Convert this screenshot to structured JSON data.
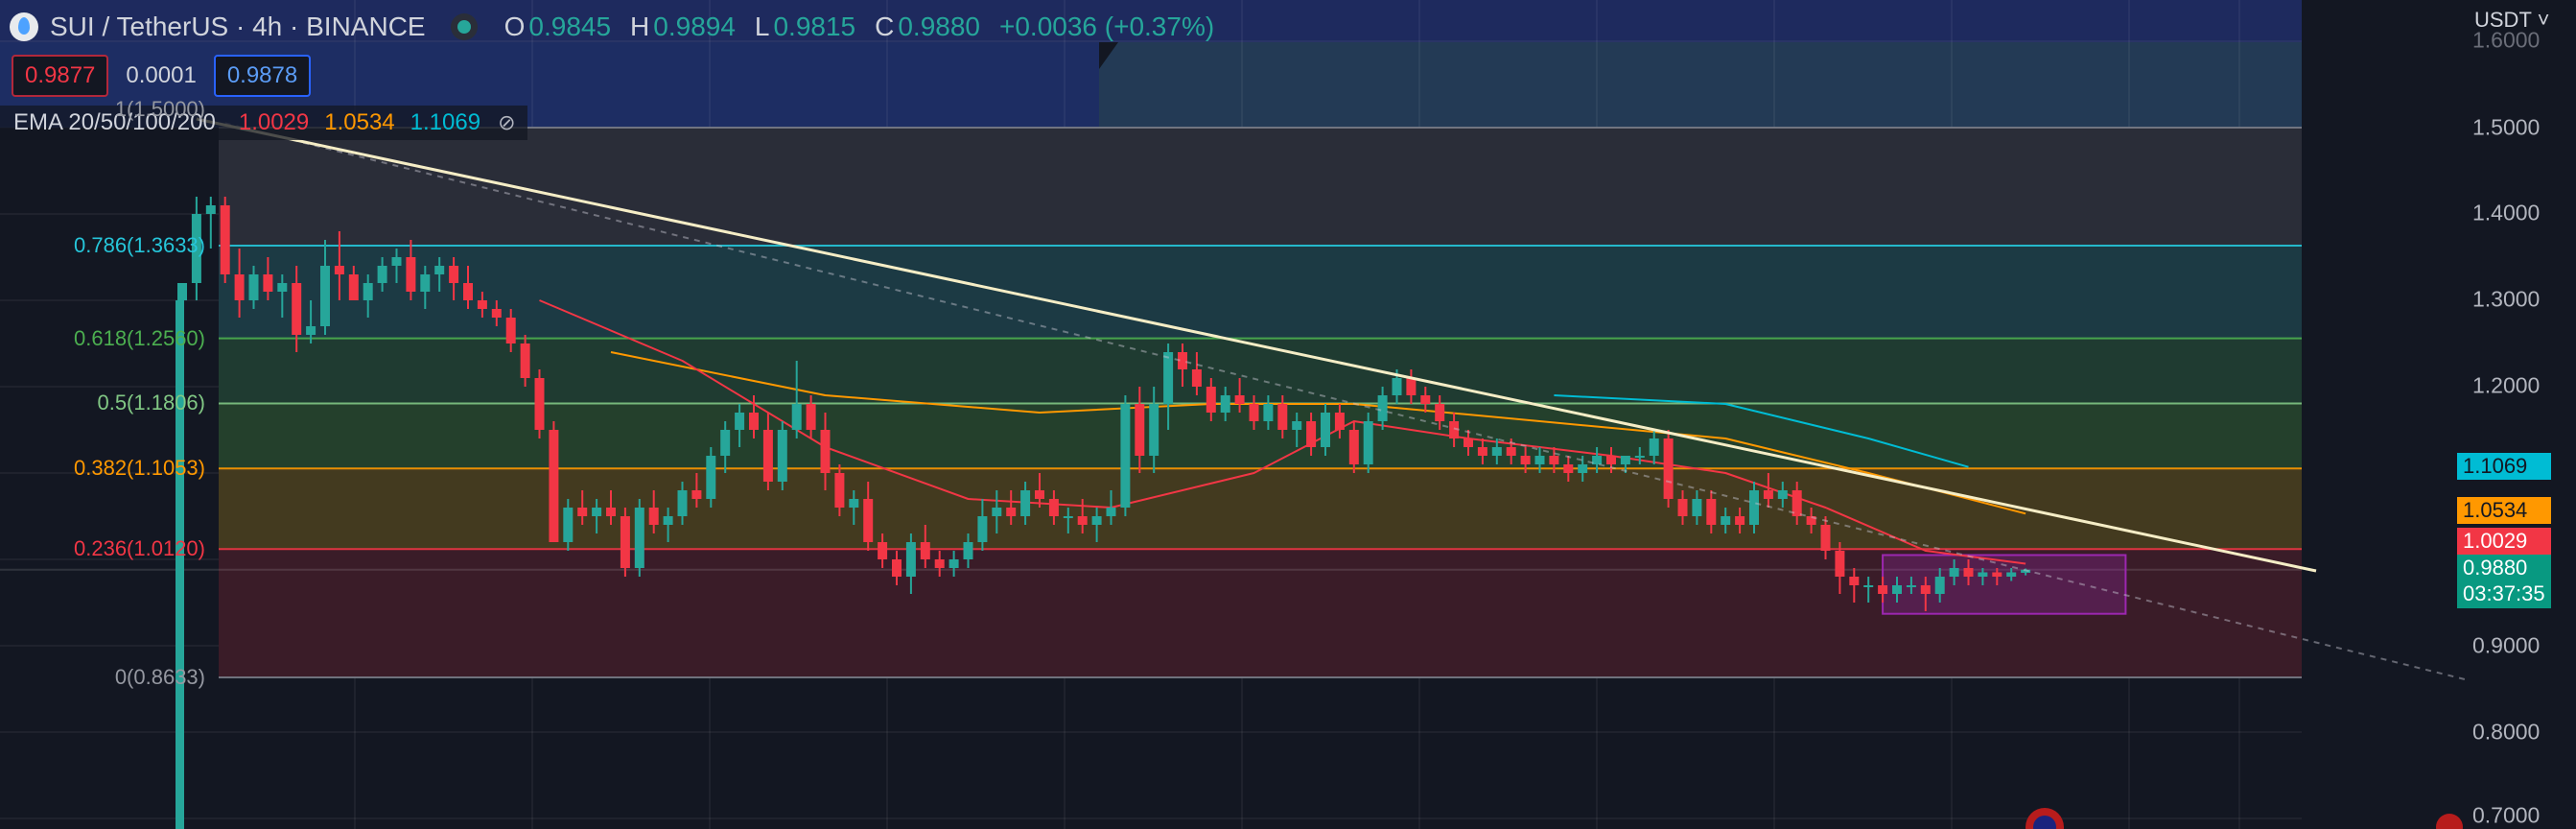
{
  "header": {
    "title": "SUI / TetherUS · 4h · BINANCE",
    "open_label": "O",
    "open": "0.9845",
    "high_label": "H",
    "high": "0.9894",
    "low_label": "L",
    "low": "0.9815",
    "close_label": "C",
    "close": "0.9880",
    "change": "+0.0036 (+0.37%)"
  },
  "quote": {
    "bid": "0.9877",
    "spread": "0.0001",
    "ask": "0.9878"
  },
  "ema": {
    "title": "EMA 20/50/100/200",
    "ema20": "1.0029",
    "ema50": "1.0534",
    "ema100": "1.1069",
    "visibility_icon": "eye-off-icon"
  },
  "fib_levels": [
    {
      "label": "1(1.5000)",
      "price": 1.5,
      "color": "#787b86",
      "fill": "#2a2d38"
    },
    {
      "label": "0.786(1.3633)",
      "price": 1.3633,
      "color": "#26c6da",
      "fill": "#1c3a44"
    },
    {
      "label": "0.618(1.2560)",
      "price": 1.256,
      "color": "#4caf50",
      "fill": "#1f3b31"
    },
    {
      "label": "0.5(1.1806)",
      "price": 1.1806,
      "color": "#81c784",
      "fill": "#24402c"
    },
    {
      "label": "0.382(1.1053)",
      "price": 1.1053,
      "color": "#ff9800",
      "fill": "#433a1f"
    },
    {
      "label": "0.236(1.0120)",
      "price": 1.012,
      "color": "#f23645",
      "fill": "#3e1f29"
    },
    {
      "label": "0(0.8633)",
      "price": 0.8633,
      "color": "#787b86",
      "fill": null
    }
  ],
  "axis": {
    "currency": "USDT",
    "ticks": [
      "1.6000",
      "1.5000",
      "1.4000",
      "1.3000",
      "1.2000",
      "0.9000",
      "0.8000",
      "0.7000"
    ]
  },
  "price_tags": {
    "ema100": "1.1069",
    "ema50": "1.0534",
    "ema20": "1.0029",
    "last": "0.9880",
    "countdown": "03:37:35"
  },
  "colors": {
    "up": "#26a69a",
    "down": "#f23645",
    "ema20": "#f23645",
    "ema50": "#ff9800",
    "ema100": "#00bcd4",
    "trendline": "#f5edc6"
  },
  "chart_data": {
    "type": "candlestick",
    "symbol": "SUI / TetherUS",
    "timeframe": "4h",
    "exchange": "BINANCE",
    "y_range": [
      0.68,
      1.62
    ],
    "candles": [
      [
        1.3,
        1.32,
        1.28,
        1.32
      ],
      [
        1.32,
        1.42,
        1.3,
        1.4
      ],
      [
        1.4,
        1.42,
        1.36,
        1.41
      ],
      [
        1.41,
        1.42,
        1.32,
        1.33
      ],
      [
        1.33,
        1.36,
        1.28,
        1.3
      ],
      [
        1.3,
        1.34,
        1.29,
        1.33
      ],
      [
        1.33,
        1.35,
        1.3,
        1.31
      ],
      [
        1.31,
        1.33,
        1.28,
        1.32
      ],
      [
        1.32,
        1.34,
        1.24,
        1.26
      ],
      [
        1.26,
        1.3,
        1.25,
        1.27
      ],
      [
        1.27,
        1.37,
        1.26,
        1.34
      ],
      [
        1.34,
        1.38,
        1.3,
        1.33
      ],
      [
        1.33,
        1.34,
        1.3,
        1.3
      ],
      [
        1.3,
        1.33,
        1.28,
        1.32
      ],
      [
        1.32,
        1.35,
        1.31,
        1.34
      ],
      [
        1.34,
        1.36,
        1.32,
        1.35
      ],
      [
        1.35,
        1.37,
        1.3,
        1.31
      ],
      [
        1.31,
        1.34,
        1.29,
        1.33
      ],
      [
        1.33,
        1.35,
        1.31,
        1.34
      ],
      [
        1.34,
        1.35,
        1.3,
        1.32
      ],
      [
        1.32,
        1.34,
        1.29,
        1.3
      ],
      [
        1.3,
        1.31,
        1.28,
        1.29
      ],
      [
        1.29,
        1.3,
        1.27,
        1.28
      ],
      [
        1.28,
        1.29,
        1.24,
        1.25
      ],
      [
        1.25,
        1.26,
        1.2,
        1.21
      ],
      [
        1.21,
        1.22,
        1.14,
        1.15
      ],
      [
        1.15,
        1.16,
        1.02,
        1.02
      ],
      [
        1.02,
        1.07,
        1.01,
        1.06
      ],
      [
        1.06,
        1.08,
        1.04,
        1.05
      ],
      [
        1.05,
        1.07,
        1.03,
        1.06
      ],
      [
        1.06,
        1.08,
        1.04,
        1.05
      ],
      [
        1.05,
        1.06,
        0.98,
        0.99
      ],
      [
        0.99,
        1.07,
        0.98,
        1.06
      ],
      [
        1.06,
        1.08,
        1.03,
        1.04
      ],
      [
        1.04,
        1.06,
        1.02,
        1.05
      ],
      [
        1.05,
        1.09,
        1.04,
        1.08
      ],
      [
        1.08,
        1.1,
        1.06,
        1.07
      ],
      [
        1.07,
        1.13,
        1.06,
        1.12
      ],
      [
        1.12,
        1.16,
        1.1,
        1.15
      ],
      [
        1.15,
        1.18,
        1.13,
        1.17
      ],
      [
        1.17,
        1.19,
        1.14,
        1.15
      ],
      [
        1.15,
        1.17,
        1.08,
        1.09
      ],
      [
        1.09,
        1.16,
        1.08,
        1.15
      ],
      [
        1.15,
        1.23,
        1.14,
        1.18
      ],
      [
        1.18,
        1.19,
        1.14,
        1.15
      ],
      [
        1.15,
        1.17,
        1.08,
        1.1
      ],
      [
        1.1,
        1.11,
        1.05,
        1.06
      ],
      [
        1.06,
        1.08,
        1.04,
        1.07
      ],
      [
        1.07,
        1.09,
        1.01,
        1.02
      ],
      [
        1.02,
        1.03,
        0.99,
        1.0
      ],
      [
        1.0,
        1.01,
        0.97,
        0.98
      ],
      [
        0.98,
        1.03,
        0.96,
        1.02
      ],
      [
        1.02,
        1.04,
        0.99,
        1.0
      ],
      [
        1.0,
        1.01,
        0.98,
        0.99
      ],
      [
        0.99,
        1.01,
        0.98,
        1.0
      ],
      [
        1.0,
        1.03,
        0.99,
        1.02
      ],
      [
        1.02,
        1.07,
        1.01,
        1.05
      ],
      [
        1.05,
        1.08,
        1.03,
        1.06
      ],
      [
        1.06,
        1.08,
        1.04,
        1.05
      ],
      [
        1.05,
        1.09,
        1.04,
        1.08
      ],
      [
        1.08,
        1.1,
        1.06,
        1.07
      ],
      [
        1.07,
        1.08,
        1.04,
        1.05
      ],
      [
        1.05,
        1.06,
        1.03,
        1.05
      ],
      [
        1.05,
        1.07,
        1.03,
        1.04
      ],
      [
        1.04,
        1.06,
        1.02,
        1.05
      ],
      [
        1.05,
        1.08,
        1.04,
        1.06
      ],
      [
        1.06,
        1.19,
        1.05,
        1.18
      ],
      [
        1.18,
        1.2,
        1.1,
        1.12
      ],
      [
        1.12,
        1.2,
        1.1,
        1.18
      ],
      [
        1.18,
        1.25,
        1.15,
        1.24
      ],
      [
        1.24,
        1.25,
        1.2,
        1.22
      ],
      [
        1.22,
        1.24,
        1.19,
        1.2
      ],
      [
        1.2,
        1.21,
        1.16,
        1.17
      ],
      [
        1.17,
        1.2,
        1.16,
        1.19
      ],
      [
        1.19,
        1.21,
        1.17,
        1.18
      ],
      [
        1.18,
        1.19,
        1.15,
        1.16
      ],
      [
        1.16,
        1.19,
        1.15,
        1.18
      ],
      [
        1.18,
        1.19,
        1.14,
        1.15
      ],
      [
        1.15,
        1.17,
        1.13,
        1.16
      ],
      [
        1.16,
        1.17,
        1.12,
        1.13
      ],
      [
        1.13,
        1.18,
        1.12,
        1.17
      ],
      [
        1.17,
        1.18,
        1.14,
        1.15
      ],
      [
        1.15,
        1.16,
        1.1,
        1.11
      ],
      [
        1.11,
        1.17,
        1.1,
        1.16
      ],
      [
        1.16,
        1.2,
        1.15,
        1.19
      ],
      [
        1.19,
        1.22,
        1.18,
        1.21
      ],
      [
        1.21,
        1.22,
        1.18,
        1.19
      ],
      [
        1.19,
        1.2,
        1.17,
        1.18
      ],
      [
        1.18,
        1.19,
        1.15,
        1.16
      ],
      [
        1.16,
        1.17,
        1.13,
        1.14
      ],
      [
        1.14,
        1.15,
        1.12,
        1.13
      ],
      [
        1.13,
        1.14,
        1.11,
        1.12
      ],
      [
        1.12,
        1.14,
        1.11,
        1.13
      ],
      [
        1.13,
        1.14,
        1.11,
        1.12
      ],
      [
        1.12,
        1.13,
        1.1,
        1.11
      ],
      [
        1.11,
        1.13,
        1.1,
        1.12
      ],
      [
        1.12,
        1.13,
        1.1,
        1.11
      ],
      [
        1.11,
        1.12,
        1.09,
        1.1
      ],
      [
        1.1,
        1.12,
        1.09,
        1.11
      ],
      [
        1.11,
        1.13,
        1.1,
        1.12
      ],
      [
        1.12,
        1.13,
        1.1,
        1.11
      ],
      [
        1.11,
        1.12,
        1.1,
        1.12
      ],
      [
        1.12,
        1.13,
        1.11,
        1.12
      ],
      [
        1.12,
        1.15,
        1.11,
        1.14
      ],
      [
        1.14,
        1.15,
        1.06,
        1.07
      ],
      [
        1.07,
        1.08,
        1.04,
        1.05
      ],
      [
        1.05,
        1.08,
        1.04,
        1.07
      ],
      [
        1.07,
        1.08,
        1.03,
        1.04
      ],
      [
        1.04,
        1.06,
        1.03,
        1.05
      ],
      [
        1.05,
        1.06,
        1.03,
        1.04
      ],
      [
        1.04,
        1.09,
        1.03,
        1.08
      ],
      [
        1.08,
        1.1,
        1.06,
        1.07
      ],
      [
        1.07,
        1.09,
        1.06,
        1.08
      ],
      [
        1.08,
        1.09,
        1.04,
        1.05
      ],
      [
        1.05,
        1.06,
        1.03,
        1.04
      ],
      [
        1.04,
        1.05,
        1.0,
        1.01
      ],
      [
        1.01,
        1.02,
        0.96,
        0.98
      ],
      [
        0.98,
        0.99,
        0.95,
        0.97
      ],
      [
        0.97,
        0.98,
        0.95,
        0.97
      ],
      [
        0.97,
        0.98,
        0.95,
        0.96
      ],
      [
        0.96,
        0.98,
        0.95,
        0.97
      ],
      [
        0.97,
        0.98,
        0.96,
        0.97
      ],
      [
        0.97,
        0.98,
        0.94,
        0.96
      ],
      [
        0.96,
        0.99,
        0.95,
        0.98
      ],
      [
        0.98,
        1.0,
        0.97,
        0.99
      ],
      [
        0.99,
        1.0,
        0.97,
        0.98
      ],
      [
        0.98,
        0.99,
        0.97,
        0.985
      ],
      [
        0.985,
        0.99,
        0.97,
        0.98
      ],
      [
        0.98,
        0.99,
        0.975,
        0.985
      ],
      [
        0.9845,
        0.9894,
        0.9815,
        0.988
      ]
    ],
    "ema20": [
      [
        25,
        1.3
      ],
      [
        35,
        1.23
      ],
      [
        45,
        1.13
      ],
      [
        55,
        1.07
      ],
      [
        65,
        1.06
      ],
      [
        75,
        1.1
      ],
      [
        82,
        1.16
      ],
      [
        90,
        1.14
      ],
      [
        100,
        1.12
      ],
      [
        108,
        1.1
      ],
      [
        115,
        1.06
      ],
      [
        122,
        1.01
      ],
      [
        129,
        0.995
      ]
    ],
    "ema50": [
      [
        30,
        1.24
      ],
      [
        45,
        1.19
      ],
      [
        60,
        1.17
      ],
      [
        72,
        1.18
      ],
      [
        82,
        1.18
      ],
      [
        95,
        1.16
      ],
      [
        108,
        1.14
      ],
      [
        118,
        1.1
      ],
      [
        129,
        1.053
      ]
    ],
    "ema100": [
      [
        96,
        1.19
      ],
      [
        108,
        1.18
      ],
      [
        118,
        1.14
      ],
      [
        125,
        1.107
      ]
    ],
    "trendline": {
      "from": [
        1,
        1.51
      ],
      "to": [
        153,
        0.985
      ]
    },
    "dashed_line": {
      "from": [
        3,
        1.505
      ],
      "to": [
        160,
        0.86
      ]
    },
    "consolidation_box": {
      "x0": 119,
      "x1": 136,
      "top": 1.005,
      "bottom": 0.937
    }
  }
}
